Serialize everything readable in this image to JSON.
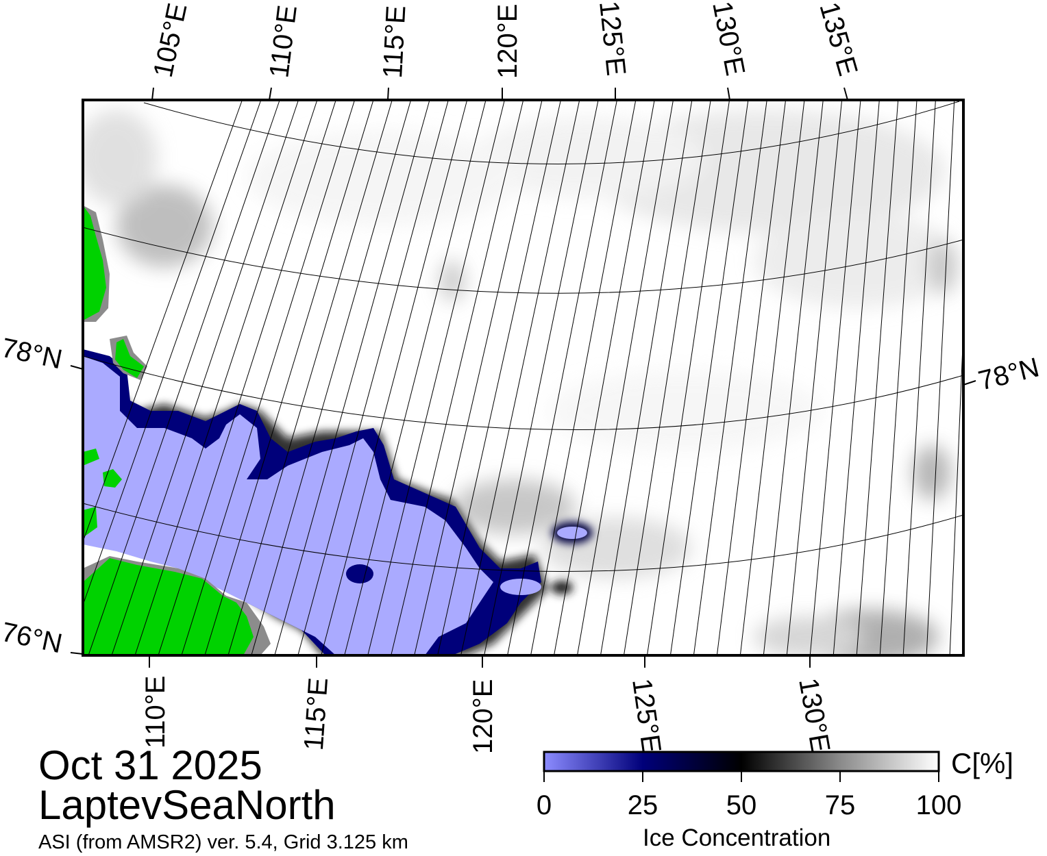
{
  "title": {
    "date": "Oct 31 2025",
    "region": "LaptevSeaNorth",
    "source": "ASI (from AMSR2) ver. 5.4,  Grid 3.125 km"
  },
  "map": {
    "projection": "polar stereographic (north)",
    "lat_range": [
      76,
      80
    ],
    "lon_range": [
      103,
      140
    ],
    "top_lon_labels": [
      "105°E",
      "110°E",
      "115°E",
      "120°E",
      "125°E",
      "130°E",
      "135°E"
    ],
    "bottom_lon_labels": [
      "110°E",
      "115°E",
      "120°E",
      "125°E",
      "130°E"
    ],
    "lat_labels_left": [
      "78°N",
      "76°N"
    ],
    "lat_labels_right": [
      "78°N"
    ],
    "colors": {
      "land": "#00d200",
      "land_mask_gray": "#8c8c8c",
      "frame": "#000000",
      "graticule": "#000000"
    },
    "features": {
      "land": [
        "Severnaya Zemlya (left edge)",
        "Taymyr coast (bottom-left)"
      ],
      "sea_ice_edge": "low concentration (blue) in south-west, rising to near 100% (white/gray) to north-east"
    }
  },
  "colorbar": {
    "label": "Ice Concentration",
    "unit": "C[%]",
    "ticks": [
      "0",
      "25",
      "50",
      "75",
      "100"
    ],
    "range": [
      0,
      100
    ],
    "stops": [
      {
        "value": 0,
        "color": "#8c8cff"
      },
      {
        "value": 25,
        "color": "#00007a"
      },
      {
        "value": 50,
        "color": "#000000"
      },
      {
        "value": 75,
        "color": "#8a8a8a"
      },
      {
        "value": 100,
        "color": "#ffffff"
      }
    ]
  }
}
